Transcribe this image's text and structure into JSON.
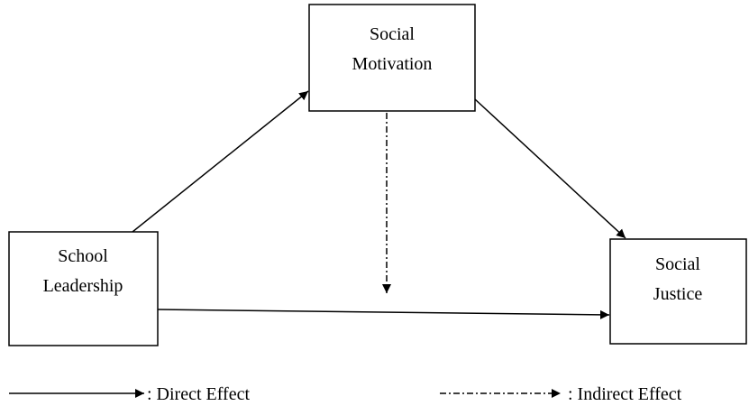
{
  "nodes": [
    {
      "lines": [
        "Social",
        "Motivation"
      ]
    },
    {
      "lines": [
        "School",
        "Leadership"
      ]
    },
    {
      "lines": [
        "Social",
        "Justice"
      ]
    }
  ],
  "legend": [
    {
      "label": ": Direct Effect"
    },
    {
      "label": ": Indirect Effect"
    }
  ]
}
